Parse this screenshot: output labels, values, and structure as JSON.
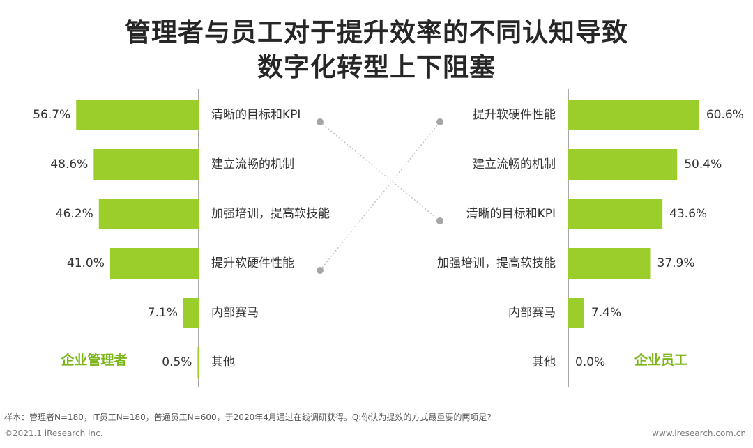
{
  "header": {
    "title_line1": "管理者与员工对于提升效率的不同认知导致",
    "title_line2": "数字化转型上下阻塞"
  },
  "colors": {
    "bar": "#9BCD2B",
    "group_label": "#7CB518",
    "connector": "#BFBFBF"
  },
  "chart_data": [
    {
      "type": "bar",
      "orientation": "horizontal",
      "direction": "right-to-left",
      "group_label": "企业管理者",
      "categories": [
        "清晰的目标和KPI",
        "建立流畅的机制",
        "加强培训，提高软技能",
        "提升软硬件性能",
        "内部赛马",
        "其他"
      ],
      "values": [
        56.7,
        48.6,
        46.2,
        41.0,
        7.1,
        0.5
      ],
      "value_labels": [
        "56.7%",
        "48.6%",
        "46.2%",
        "41.0%",
        "7.1%",
        "0.5%"
      ],
      "unit": "%"
    },
    {
      "type": "bar",
      "orientation": "horizontal",
      "direction": "left-to-right",
      "group_label": "企业员工",
      "categories": [
        "提升软硬件性能",
        "建立流畅的机制",
        "清晰的目标和KPI",
        "加强培训，提高软技能",
        "内部赛马",
        "其他"
      ],
      "values": [
        60.6,
        50.4,
        43.6,
        37.9,
        7.4,
        0.0
      ],
      "value_labels": [
        "60.6%",
        "50.4%",
        "43.6%",
        "37.9%",
        "7.4%",
        "0.0%"
      ],
      "unit": "%"
    }
  ],
  "footer": {
    "note": "样本：管理者N=180，IT员工N=180，普通员工N=600，于2020年4月通过在线调研获得。Q:你认为提效的方式最重要的两项是?",
    "copyright": "©2021.1 iResearch Inc.",
    "website": "www.iresearch.com.cn"
  }
}
